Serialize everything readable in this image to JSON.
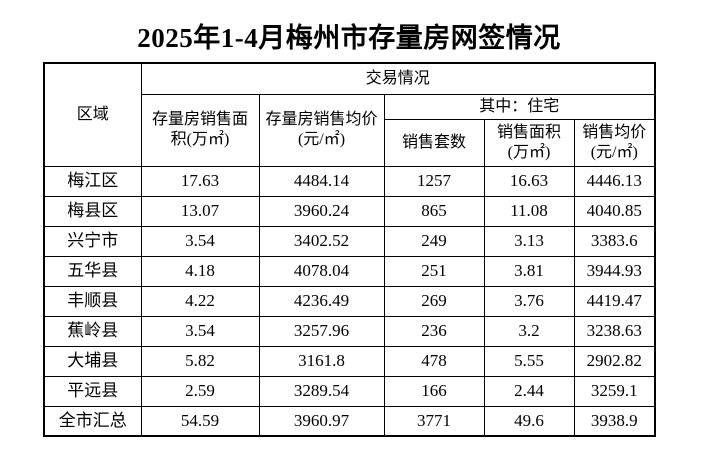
{
  "title": "2025年1-4月梅州市存量房网签情况",
  "table": {
    "header": {
      "region": "区域",
      "transaction": "交易情况",
      "stock_area": "存量房销售面\n积(万㎡)",
      "stock_price": "存量房销售均价\n(元/㎡)",
      "residential": "其中：住宅",
      "units": "销售套数",
      "res_area": "销售面积\n(万㎡)",
      "res_price": "销售均价\n(元/㎡)"
    },
    "rows": [
      {
        "region": "梅江区",
        "stock_area": "17.63",
        "stock_price": "4484.14",
        "units": "1257",
        "res_area": "16.63",
        "res_price": "4446.13"
      },
      {
        "region": "梅县区",
        "stock_area": "13.07",
        "stock_price": "3960.24",
        "units": "865",
        "res_area": "11.08",
        "res_price": "4040.85"
      },
      {
        "region": "兴宁市",
        "stock_area": "3.54",
        "stock_price": "3402.52",
        "units": "249",
        "res_area": "3.13",
        "res_price": "3383.6"
      },
      {
        "region": "五华县",
        "stock_area": "4.18",
        "stock_price": "4078.04",
        "units": "251",
        "res_area": "3.81",
        "res_price": "3944.93"
      },
      {
        "region": "丰顺县",
        "stock_area": "4.22",
        "stock_price": "4236.49",
        "units": "269",
        "res_area": "3.76",
        "res_price": "4419.47"
      },
      {
        "region": "蕉岭县",
        "stock_area": "3.54",
        "stock_price": "3257.96",
        "units": "236",
        "res_area": "3.2",
        "res_price": "3238.63"
      },
      {
        "region": "大埔县",
        "stock_area": "5.82",
        "stock_price": "3161.8",
        "units": "478",
        "res_area": "5.55",
        "res_price": "2902.82"
      },
      {
        "region": "平远县",
        "stock_area": "2.59",
        "stock_price": "3289.54",
        "units": "166",
        "res_area": "2.44",
        "res_price": "3259.1"
      },
      {
        "region": "全市汇总",
        "stock_area": "54.59",
        "stock_price": "3960.97",
        "units": "3771",
        "res_area": "49.6",
        "res_price": "3938.9"
      }
    ]
  }
}
